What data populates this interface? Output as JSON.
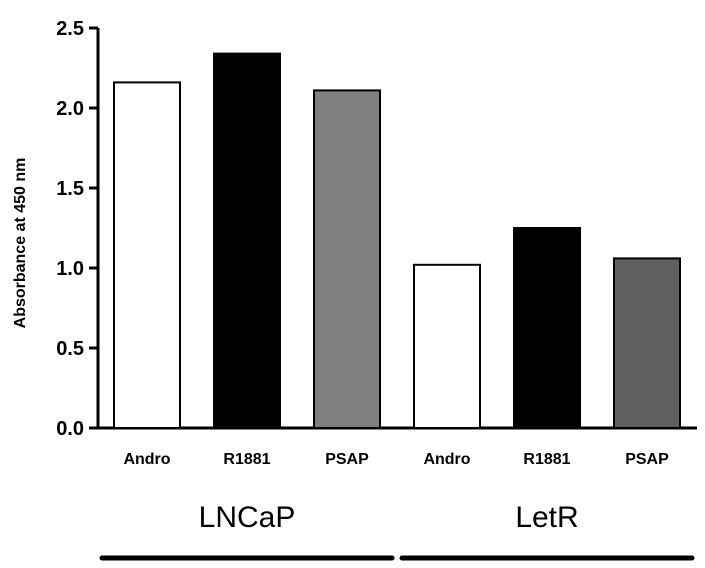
{
  "chart_data": {
    "type": "bar",
    "title": "",
    "xlabel": "",
    "ylabel": "Absorbance at 450 nm",
    "ylim": [
      0,
      2.5
    ],
    "yticks": [
      "0.0",
      "0.5",
      "1.0",
      "1.5",
      "2.0",
      "2.5"
    ],
    "grid": false,
    "legend": "none",
    "groups": [
      {
        "label": "LNCaP",
        "categories": [
          "Andro",
          "R1881",
          "PSAP"
        ],
        "values": [
          2.16,
          2.34,
          2.11
        ],
        "colors": [
          "#ffffff",
          "#000000",
          "#808080"
        ]
      },
      {
        "label": "LetR",
        "categories": [
          "Andro",
          "R1881",
          "PSAP"
        ],
        "values": [
          1.02,
          1.25,
          1.06
        ],
        "colors": [
          "#ffffff",
          "#000000",
          "#5f5f5f"
        ]
      }
    ]
  }
}
